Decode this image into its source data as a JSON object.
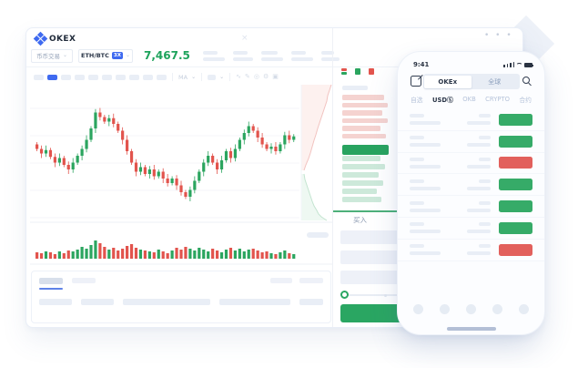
{
  "glyphs": {
    "close": "×",
    "window_dots": "• • •",
    "chevron": "⌄",
    "wave": "∿",
    "pencil": "✎",
    "target": "◎",
    "gear": "⚙",
    "expand": "▣"
  },
  "desktop": {
    "brand": "OKEX",
    "market_select": "币币交易",
    "pair": "ETH/BTC",
    "leverage_badge": "3X",
    "last_price": "7,467.5",
    "toolbar": {
      "ma_label": "MA",
      "pill_count": 10,
      "active_pill_index": 1
    },
    "stat_pill_widths": [
      [
        16,
        24
      ],
      [
        16,
        22
      ],
      [
        18,
        24
      ],
      [
        16,
        24
      ],
      [
        14,
        20
      ]
    ],
    "bottom_panel": {
      "header_pill_widths": [
        36,
        36,
        96,
        78,
        26
      ]
    },
    "orderbook": {
      "ask_row_widths": [
        46,
        50,
        44,
        50,
        42,
        48
      ],
      "bid_row_widths": [
        42,
        47,
        40,
        45,
        38,
        43
      ],
      "last_price_bar_width": 51,
      "buy_tab_label": "买入"
    }
  },
  "phone": {
    "status_time": "9:41",
    "segmented": {
      "options": [
        "OKEx",
        "全球"
      ],
      "selected_index": 0
    },
    "tabs": {
      "items": [
        "自选",
        "USDⓈ",
        "OKB",
        "CRYPTO",
        "合约"
      ],
      "active_index": 1
    },
    "list_rows": [
      "green",
      "green",
      "red",
      "green",
      "green",
      "green",
      "red"
    ],
    "tabbar_dot_count": 5
  },
  "colors": {
    "candle_green": "#2ba55f",
    "candle_red": "#e2544d",
    "accent_blue": "#3f6af0",
    "price_green": "#1ea35c",
    "ask_row": "#f5d3d0",
    "bid_row": "#cde9da",
    "last_price_bar": "#28a35f",
    "phone_green": "#36ab68",
    "phone_red": "#e2605c",
    "placeholder_pill": "#e9eef6"
  },
  "chart_data": {
    "type": "candlestick",
    "title": "ETH/BTC candlestick chart with volume bars and order-book depth curve (no axis tick labels visible)",
    "last_price": 7467.5,
    "axes_labeled": false,
    "gridlines": true,
    "candles_open_close": [
      [
        58,
        54
      ],
      [
        54,
        50
      ],
      [
        50,
        53
      ],
      [
        53,
        47
      ],
      [
        47,
        42
      ],
      [
        42,
        46
      ],
      [
        46,
        40
      ],
      [
        40,
        36
      ],
      [
        36,
        42
      ],
      [
        42,
        48
      ],
      [
        48,
        54
      ],
      [
        54,
        62
      ],
      [
        62,
        72
      ],
      [
        72,
        86
      ],
      [
        86,
        82
      ],
      [
        82,
        78
      ],
      [
        78,
        81
      ],
      [
        81,
        76
      ],
      [
        76,
        70
      ],
      [
        70,
        62
      ],
      [
        62,
        52
      ],
      [
        52,
        42
      ],
      [
        42,
        34
      ],
      [
        34,
        38
      ],
      [
        38,
        32
      ],
      [
        32,
        36
      ],
      [
        36,
        30
      ],
      [
        30,
        34
      ],
      [
        34,
        28
      ],
      [
        28,
        24
      ],
      [
        24,
        28
      ],
      [
        28,
        22
      ],
      [
        22,
        16
      ],
      [
        16,
        12
      ],
      [
        12,
        18
      ],
      [
        18,
        26
      ],
      [
        26,
        34
      ],
      [
        34,
        42
      ],
      [
        42,
        48
      ],
      [
        48,
        42
      ],
      [
        42,
        36
      ],
      [
        36,
        44
      ],
      [
        44,
        52
      ],
      [
        52,
        46
      ],
      [
        46,
        54
      ],
      [
        54,
        62
      ],
      [
        62,
        68
      ],
      [
        68,
        74
      ],
      [
        74,
        70
      ],
      [
        70,
        64
      ],
      [
        64,
        58
      ],
      [
        58,
        54
      ],
      [
        54,
        56
      ],
      [
        56,
        52
      ],
      [
        52,
        58
      ],
      [
        58,
        66
      ],
      [
        66,
        62
      ],
      [
        62,
        65
      ]
    ],
    "volume": [
      7,
      6,
      8,
      7,
      5,
      8,
      6,
      9,
      8,
      10,
      13,
      11,
      15,
      20,
      17,
      13,
      10,
      12,
      9,
      11,
      14,
      16,
      12,
      10,
      9,
      8,
      7,
      10,
      8,
      6,
      9,
      12,
      10,
      13,
      11,
      9,
      12,
      10,
      8,
      11,
      9,
      7,
      10,
      12,
      9,
      11,
      8,
      10,
      11,
      9,
      7,
      8,
      6,
      5,
      7,
      9,
      6,
      5
    ],
    "depth_ask_line": [
      [
        331,
        2
      ],
      [
        329,
        8
      ],
      [
        327,
        14
      ],
      [
        326,
        20
      ],
      [
        324,
        26
      ],
      [
        322,
        32
      ],
      [
        320,
        38
      ],
      [
        318,
        44
      ],
      [
        316,
        50
      ],
      [
        314,
        57
      ],
      [
        312,
        63
      ],
      [
        310,
        70
      ],
      [
        308,
        77
      ],
      [
        306,
        83
      ],
      [
        303,
        90
      ],
      [
        301,
        96
      ]
    ],
    "depth_bid_line": [
      [
        301,
        100
      ],
      [
        302,
        106
      ],
      [
        304,
        112
      ],
      [
        306,
        118
      ],
      [
        308,
        124
      ],
      [
        310,
        130
      ],
      [
        312,
        135
      ],
      [
        315,
        140
      ],
      [
        317,
        144
      ],
      [
        320,
        147
      ],
      [
        323,
        149
      ],
      [
        326,
        151
      ]
    ]
  }
}
